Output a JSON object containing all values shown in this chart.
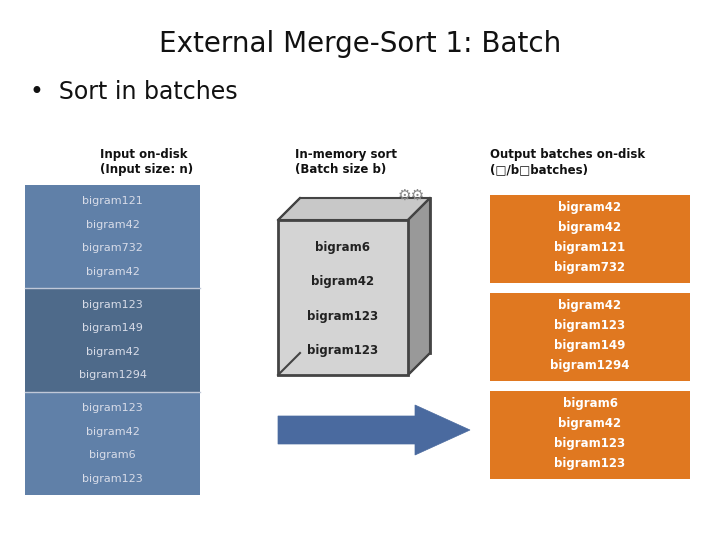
{
  "title": "External Merge-Sort 1: Batch",
  "subtitle": "•  Sort in batches",
  "bg_color": "#ffffff",
  "title_fontsize": 20,
  "subtitle_fontsize": 17,
  "label_fontsize": 8.5,
  "content_fontsize": 8,
  "col1_label": "Input on-disk\n(Input size: n)",
  "col2_label": "In-memory sort\n(Batch size b)",
  "col3_label": "Output batches on-disk\n(□/b□batches)",
  "input_color": "#6080a8",
  "input_dark_color": "#4e6a8a",
  "output_color": "#e07820",
  "arrow_color": "#4a6a9f",
  "input_lines": [
    [
      "bigram121",
      "bigram42",
      "bigram732",
      "bigram42"
    ],
    [
      "bigram123",
      "bigram149",
      "bigram42",
      "bigram1294"
    ],
    [
      "bigram123",
      "bigram42",
      "bigram6",
      "bigram123"
    ]
  ],
  "memory_lines": [
    "bigram6",
    "bigram42",
    "bigram123",
    "bigram123"
  ],
  "output_batches": [
    [
      "bigram42",
      "bigram42",
      "bigram121",
      "bigram732"
    ],
    [
      "bigram42",
      "bigram123",
      "bigram149",
      "bigram1294"
    ],
    [
      "bigram6",
      "bigram42",
      "bigram123",
      "bigram123"
    ]
  ],
  "text_color_light": "#d8dce8",
  "text_color_white": "#ffffff",
  "section_colors": [
    "#6080a8",
    "#4e6a8a",
    "#6080a8"
  ]
}
